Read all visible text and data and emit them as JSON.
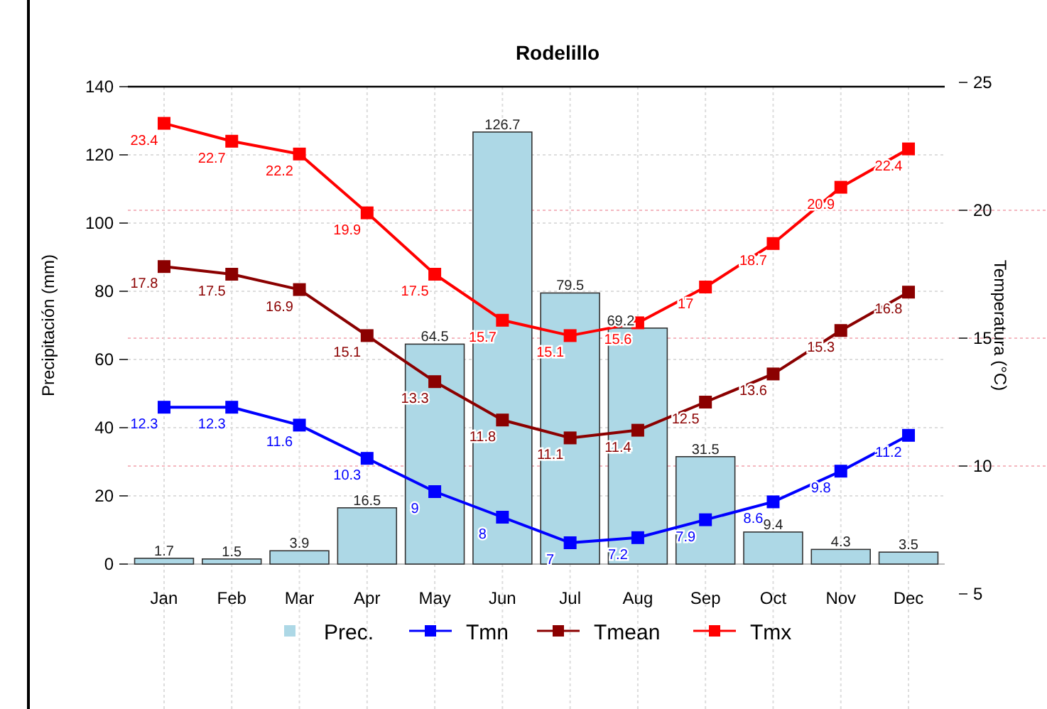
{
  "chart_data": {
    "type": "bar",
    "title": "Rodelillo",
    "ylabel": "Precipitación (mm)",
    "y2label": "Temperatura (°C)",
    "categories": [
      "Jan",
      "Feb",
      "Mar",
      "Apr",
      "May",
      "Jun",
      "Jul",
      "Aug",
      "Sep",
      "Oct",
      "Nov",
      "Dec"
    ],
    "ylim": [
      0,
      140
    ],
    "yticks": [
      0,
      20,
      40,
      60,
      80,
      100,
      120,
      140
    ],
    "y2lim": [
      5,
      25
    ],
    "y2ticks": [
      5,
      10,
      15,
      20,
      25
    ],
    "grid": true,
    "legend": "bottom",
    "marker": "square",
    "data_labels": true,
    "series": [
      {
        "name": "Prec.",
        "color": "#add8e6",
        "values": [
          1.7,
          1.5,
          3.9,
          16.5,
          64.5,
          126.7,
          79.5,
          69.2,
          31.5,
          9.4,
          4.3,
          3.5
        ]
      },
      {
        "name": "Tmn",
        "type": "line",
        "axis": "y2",
        "color": "#0000ff",
        "values": [
          12.3,
          12.3,
          11.6,
          10.3,
          9,
          8,
          7,
          7.2,
          7.9,
          8.6,
          9.8,
          11.2
        ]
      },
      {
        "name": "Tmean",
        "type": "line",
        "axis": "y2",
        "color": "#8b0000",
        "values": [
          17.8,
          17.5,
          16.9,
          15.1,
          13.3,
          11.8,
          11.1,
          11.4,
          12.5,
          13.6,
          15.3,
          16.8
        ]
      },
      {
        "name": "Tmx",
        "type": "line",
        "axis": "y2",
        "color": "#ff0000",
        "values": [
          23.4,
          22.7,
          22.2,
          19.9,
          17.5,
          15.7,
          15.1,
          15.6,
          17,
          18.7,
          20.9,
          22.4
        ]
      }
    ]
  }
}
